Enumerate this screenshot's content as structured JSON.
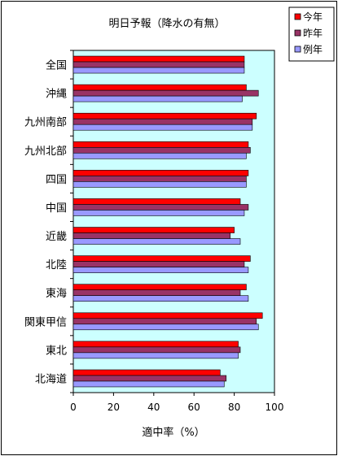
{
  "chart_data": {
    "type": "bar",
    "orientation": "horizontal",
    "title": "明日予報（降水の有無）",
    "xlabel": "適中率（%）",
    "ylabel": "",
    "xlim": [
      0,
      100
    ],
    "xticks": [
      "0",
      "20",
      "40",
      "60",
      "80",
      "100"
    ],
    "categories": [
      "全国",
      "沖縄",
      "九州南部",
      "九州北部",
      "四国",
      "中国",
      "近畿",
      "北陸",
      "東海",
      "関東甲信",
      "東北",
      "北海道"
    ],
    "series": [
      {
        "name": "今年",
        "color": "#ff0000",
        "values": [
          85,
          86,
          91,
          87,
          87,
          83,
          80,
          88,
          86,
          94,
          82,
          73
        ]
      },
      {
        "name": "昨年",
        "color": "#993366",
        "values": [
          85,
          92,
          89,
          88,
          86,
          87,
          78,
          85,
          83,
          91,
          83,
          76
        ]
      },
      {
        "name": "例年",
        "color": "#9999ff",
        "values": [
          85,
          84,
          89,
          86,
          86,
          85,
          83,
          87,
          87,
          92,
          82,
          75
        ]
      }
    ],
    "plot_background": "#ccffff",
    "grid": false,
    "legend_position": "top-right"
  }
}
